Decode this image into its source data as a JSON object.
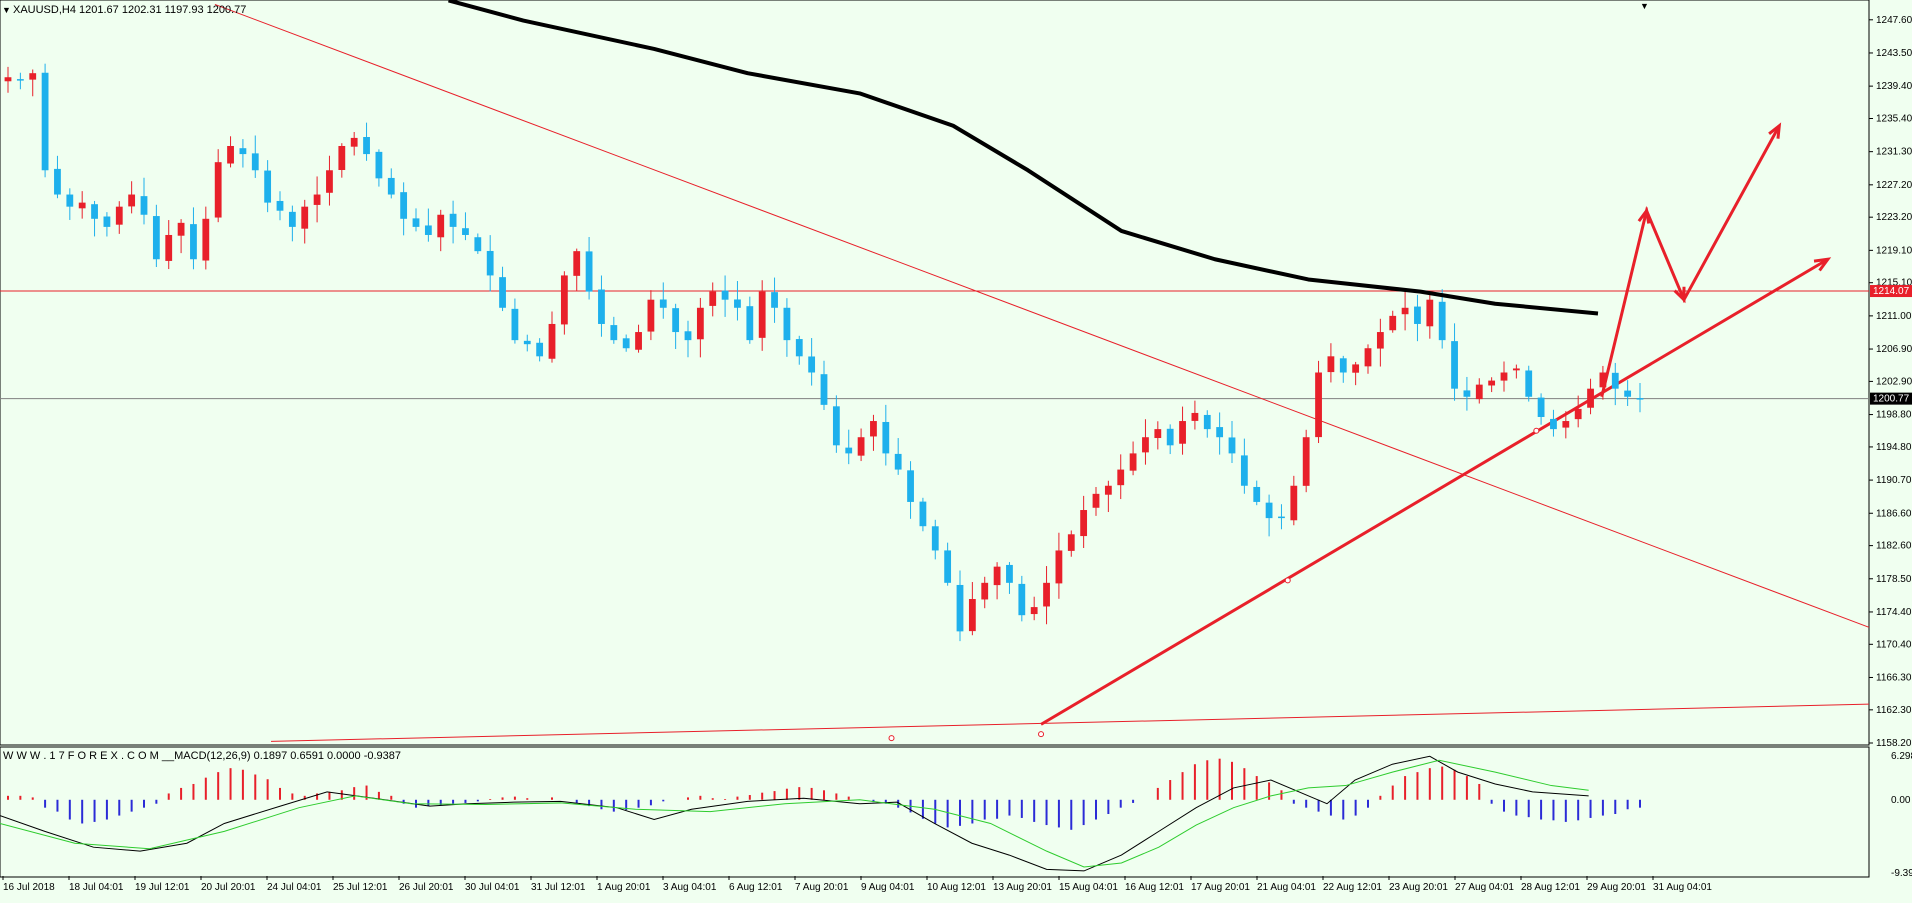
{
  "window": {
    "symbol_header": "XAUUSD,H4  1201.67 1202.31 1197.93 1200.77"
  },
  "indicator": {
    "header": "W W W . 1 7 F O R E X . C O M __MACD(12,26,9) 0.1897 0.6591 0.0000 -0.9387"
  },
  "colors": {
    "background": "#f0fff0",
    "bull_candle": "#e8202a",
    "bear_candle": "#1eb0ec",
    "sma_line": "#000000",
    "trendline": "#e8202a",
    "macd_positive": "#e8202a",
    "macd_negative": "#2b2bd6",
    "macd_line": "#000000",
    "signal_line": "#2ecc2e",
    "grid_line": "#808080"
  },
  "chart_data": [
    {
      "type": "candlestick",
      "title": "XAUUSD,H4",
      "ylim": [
        1158.2,
        1249.8
      ],
      "y_ticks": [
        "1247.60",
        "1243.50",
        "1239.40",
        "1235.40",
        "1231.30",
        "1227.20",
        "1223.20",
        "1219.10",
        "1215.10",
        "1211.00",
        "1206.90",
        "1202.90",
        "1198.80",
        "1194.80",
        "1190.70",
        "1186.60",
        "1182.60",
        "1178.50",
        "1174.40",
        "1170.40",
        "1166.30",
        "1162.30",
        "1158.20"
      ],
      "x_ticks": [
        "16 Jul 2018",
        "18 Jul 04:01",
        "19 Jul 12:01",
        "20 Jul 20:01",
        "24 Jul 04:01",
        "25 Jul 12:01",
        "26 Jul 20:01",
        "30 Jul 04:01",
        "31 Jul 12:01",
        "1 Aug 20:01",
        "3 Aug 04:01",
        "6 Aug 12:01",
        "7 Aug 20:01",
        "9 Aug 04:01",
        "10 Aug 12:01",
        "13 Aug 20:01",
        "15 Aug 04:01",
        "16 Aug 12:01",
        "17 Aug 20:01",
        "21 Aug 04:01",
        "22 Aug 12:01",
        "23 Aug 20:01",
        "27 Aug 04:01",
        "28 Aug 12:01",
        "29 Aug 20:01",
        "31 Aug 04:01"
      ],
      "current_price": "1200.77",
      "horizontal_level": "1214.07",
      "close_path": [
        1240.5,
        1240.2,
        1241.0,
        1229.0,
        1226.0,
        1224.5,
        1225.0,
        1223.0,
        1222.0,
        1224.5,
        1226.0,
        1223.5,
        1218.0,
        1221.0,
        1222.5,
        1218.0,
        1223.0,
        1230.0,
        1232.0,
        1231.0,
        1229.0,
        1225.0,
        1224.0,
        1222.0,
        1224.5,
        1226.0,
        1229.0,
        1232.0,
        1233.0,
        1231.0,
        1228.0,
        1226.0,
        1223.0,
        1222.0,
        1221.0,
        1223.5,
        1222.0,
        1221.0,
        1219.0,
        1216.0,
        1212.0,
        1208.0,
        1207.5,
        1206.0,
        1210.0,
        1216.0,
        1219.0,
        1214.0,
        1210.0,
        1208.0,
        1207.0,
        1209.0,
        1213.0,
        1212.0,
        1209.0,
        1208.0,
        1212.0,
        1214.0,
        1213.0,
        1212.0,
        1208.0,
        1214.0,
        1212.0,
        1208.0,
        1206.0,
        1204.0,
        1200.0,
        1195.0,
        1194.0,
        1196.0,
        1198.0,
        1194.0,
        1192.0,
        1188.0,
        1185.0,
        1182.0,
        1178.0,
        1172.0,
        1176.0,
        1178.0,
        1180.0,
        1178.0,
        1174.0,
        1175.0,
        1178.0,
        1182.0,
        1184.0,
        1187.0,
        1189.0,
        1190.0,
        1192.0,
        1194.0,
        1196.0,
        1197.0,
        1195.0,
        1198.0,
        1199.0,
        1197.0,
        1196.0,
        1194.0,
        1190.0,
        1188.0,
        1186.0,
        1186.0,
        1190.0,
        1196.0,
        1204.0,
        1206.0,
        1204.0,
        1205.0,
        1207.0,
        1209.0,
        1211.0,
        1212.0,
        1210.0,
        1213.0,
        1208.0,
        1202.0,
        1201.0,
        1202.5,
        1203.0,
        1204.0,
        1204.5,
        1201.0,
        1198.5,
        1197.0,
        1198.0,
        1199.5,
        1202.0,
        1204.0,
        1202.0,
        1201.0,
        1200.77
      ],
      "sma": {
        "name": "",
        "points": [
          [
            0.24,
            1250.0
          ],
          [
            0.28,
            1247.5
          ],
          [
            0.35,
            1244.0
          ],
          [
            0.4,
            1241.0
          ],
          [
            0.46,
            1238.5
          ],
          [
            0.51,
            1234.5
          ],
          [
            0.55,
            1229.0
          ],
          [
            0.6,
            1221.5
          ],
          [
            0.65,
            1218.0
          ],
          [
            0.7,
            1215.5
          ],
          [
            0.76,
            1214.0
          ],
          [
            0.8,
            1212.5
          ],
          [
            0.855,
            1211.3
          ]
        ]
      },
      "trendlines": [
        {
          "name": "down-trendline",
          "from": [
            0.115,
            1249.5
          ],
          "to": [
            1.0,
            1172.5
          ]
        },
        {
          "name": "up-trendline",
          "from": [
            0.557,
            1160.5
          ],
          "to": [
            0.978,
            1218.0
          ],
          "arrow": true
        },
        {
          "name": "bottom-line",
          "from": [
            0.145,
            1158.4
          ],
          "to": [
            1.0,
            1163.0
          ]
        }
      ],
      "projection": [
        [
          0.857,
          1201.0
        ],
        [
          0.881,
          1224.0
        ],
        [
          0.901,
          1213.0
        ],
        [
          0.952,
          1234.5
        ]
      ]
    },
    {
      "type": "macd",
      "title": "MACD(12,26,9)",
      "ylim": [
        -9.3923,
        6.2988
      ],
      "y_ticks": [
        "6.2988",
        "0.00",
        "-9.3923"
      ],
      "histogram": [
        0.5,
        0.5,
        0.3,
        -1.0,
        -1.5,
        -2.5,
        -3.0,
        -2.8,
        -2.5,
        -2.0,
        -1.5,
        -1.0,
        -0.5,
        0.8,
        1.5,
        2.0,
        2.8,
        3.5,
        4.0,
        3.8,
        3.2,
        2.6,
        1.5,
        0.8,
        0.5,
        0.8,
        1.0,
        1.2,
        1.6,
        1.8,
        1.0,
        0.5,
        -0.5,
        -1.0,
        -0.8,
        -0.7,
        -0.5,
        -0.4,
        -0.2,
        0.1,
        0.3,
        0.4,
        0.2,
        0.0,
        0.3,
        0.0,
        -0.4,
        -0.8,
        -1.2,
        -1.5,
        -1.3,
        -1.0,
        -0.7,
        -0.2,
        0.0,
        0.3,
        0.5,
        0.2,
        0.1,
        0.4,
        0.6,
        0.9,
        1.1,
        1.4,
        1.6,
        1.5,
        1.2,
        0.8,
        0.4,
        0.0,
        -0.3,
        -0.5,
        -1.0,
        -1.6,
        -2.4,
        -3.0,
        -3.5,
        -3.3,
        -3.0,
        -2.5,
        -2.4,
        -2.0,
        -2.3,
        -2.8,
        -3.2,
        -3.5,
        -3.8,
        -3.2,
        -2.5,
        -1.8,
        -1.0,
        -0.4,
        0.0,
        1.5,
        2.5,
        3.5,
        4.5,
        5.0,
        5.2,
        4.8,
        4.0,
        3.0,
        2.2,
        1.2,
        -0.5,
        -1.0,
        -1.5,
        -2.0,
        -2.5,
        -2.0,
        -1.0,
        0.5,
        1.8,
        3.0,
        3.5,
        4.0,
        4.2,
        3.8,
        3.0,
        2.0,
        -0.5,
        -1.5,
        -2.0,
        -2.2,
        -2.5,
        -2.6,
        -2.8,
        -2.6,
        -2.3,
        -2.0,
        -1.8,
        -1.2,
        -1.0
      ],
      "macd_line": [
        [
          0.0,
          -2.0
        ],
        [
          0.024,
          -4.0
        ],
        [
          0.05,
          -6.0
        ],
        [
          0.075,
          -6.5
        ],
        [
          0.1,
          -5.5
        ],
        [
          0.12,
          -3.0
        ],
        [
          0.15,
          -0.8
        ],
        [
          0.175,
          1.0
        ],
        [
          0.2,
          0.2
        ],
        [
          0.23,
          -0.8
        ],
        [
          0.25,
          -0.5
        ],
        [
          0.275,
          -0.3
        ],
        [
          0.3,
          -0.2
        ],
        [
          0.33,
          -1.0
        ],
        [
          0.35,
          -2.5
        ],
        [
          0.37,
          -1.2
        ],
        [
          0.4,
          -0.2
        ],
        [
          0.43,
          0.2
        ],
        [
          0.46,
          -0.5
        ],
        [
          0.48,
          -0.3
        ],
        [
          0.5,
          -3.0
        ],
        [
          0.52,
          -5.5
        ],
        [
          0.54,
          -7.0
        ],
        [
          0.56,
          -8.8
        ],
        [
          0.58,
          -9.0
        ],
        [
          0.6,
          -7.0
        ],
        [
          0.62,
          -4.0
        ],
        [
          0.64,
          -1.0
        ],
        [
          0.66,
          1.5
        ],
        [
          0.68,
          2.5
        ],
        [
          0.7,
          0.5
        ],
        [
          0.71,
          -0.5
        ],
        [
          0.725,
          2.5
        ],
        [
          0.745,
          4.5
        ],
        [
          0.765,
          5.5
        ],
        [
          0.78,
          3.5
        ],
        [
          0.8,
          2.0
        ],
        [
          0.82,
          1.0
        ],
        [
          0.85,
          0.5
        ]
      ],
      "signal_line": [
        [
          0.0,
          -3.0
        ],
        [
          0.04,
          -5.5
        ],
        [
          0.08,
          -6.2
        ],
        [
          0.12,
          -4.0
        ],
        [
          0.16,
          -1.0
        ],
        [
          0.19,
          0.5
        ],
        [
          0.22,
          -0.5
        ],
        [
          0.26,
          -0.6
        ],
        [
          0.3,
          -0.4
        ],
        [
          0.34,
          -1.2
        ],
        [
          0.38,
          -1.5
        ],
        [
          0.42,
          -0.5
        ],
        [
          0.46,
          0.0
        ],
        [
          0.5,
          -1.2
        ],
        [
          0.53,
          -3.0
        ],
        [
          0.56,
          -6.5
        ],
        [
          0.58,
          -8.5
        ],
        [
          0.6,
          -8.0
        ],
        [
          0.62,
          -6.0
        ],
        [
          0.64,
          -3.2
        ],
        [
          0.66,
          -1.0
        ],
        [
          0.68,
          0.5
        ],
        [
          0.7,
          1.5
        ],
        [
          0.72,
          1.8
        ],
        [
          0.745,
          3.5
        ],
        [
          0.77,
          5.0
        ],
        [
          0.8,
          3.5
        ],
        [
          0.83,
          1.8
        ],
        [
          0.85,
          1.2
        ]
      ]
    }
  ]
}
